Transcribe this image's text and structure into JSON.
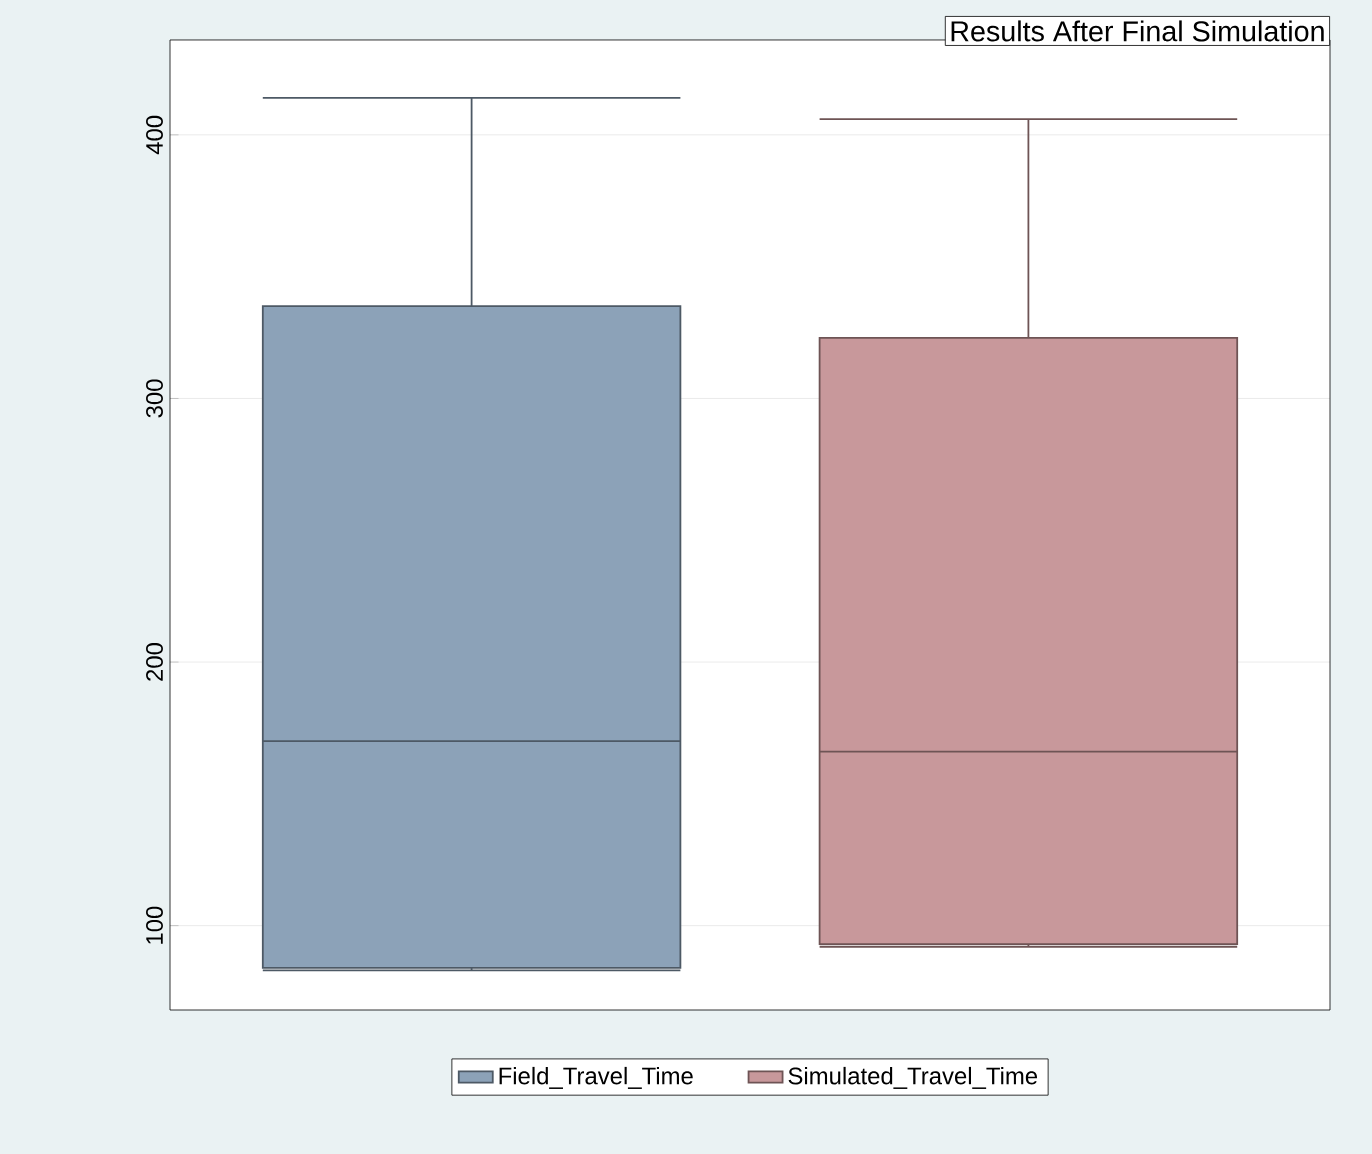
{
  "chart_data": {
    "type": "box",
    "title": "Results After Final Simulation",
    "categories": [
      null
    ],
    "series": [
      {
        "name": "Field_Travel_Time",
        "color": "#8ca2b8",
        "boxes": [
          {
            "low": 83,
            "q1": 84,
            "median": 170,
            "q3": 335,
            "high": 414
          }
        ]
      },
      {
        "name": "Simulated_Travel_Time",
        "color": "#c8989b",
        "boxes": [
          {
            "low": 92,
            "q1": 93,
            "median": 166,
            "q3": 323,
            "high": 406
          }
        ]
      }
    ],
    "ylim": [
      68,
      436
    ],
    "yticks": [
      100,
      200,
      300,
      400
    ],
    "grid": "y",
    "legend": "bottom",
    "tick_labels": "y"
  }
}
